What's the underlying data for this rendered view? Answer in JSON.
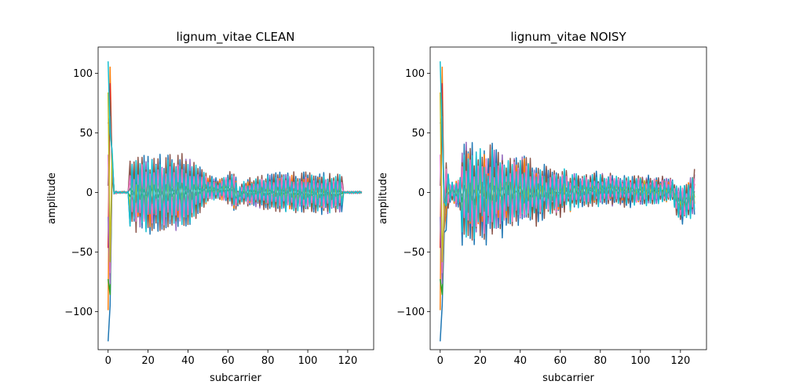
{
  "figure": {
    "left_title": "lignum_vitae CLEAN",
    "right_title": "lignum_vitae NOISY"
  },
  "chart_data": [
    {
      "type": "line",
      "title": "lignum_vitae CLEAN",
      "xlabel": "subcarrier",
      "ylabel": "amplitude",
      "xlim": [
        -5,
        133
      ],
      "ylim": [
        -132,
        122
      ],
      "xticks": [
        0,
        20,
        40,
        60,
        80,
        100,
        120
      ],
      "yticks": [
        -100,
        -50,
        0,
        50,
        100
      ],
      "xtick_labels": [
        "0",
        "20",
        "40",
        "60",
        "80",
        "100",
        "120"
      ],
      "ytick_labels": [
        "−100",
        "−50",
        "0",
        "50",
        "100"
      ],
      "grid": false,
      "series_count": 10,
      "envelope": {
        "x": [
          0,
          1,
          2,
          3,
          5,
          10,
          11,
          15,
          20,
          25,
          30,
          35,
          40,
          45,
          50,
          55,
          60,
          62,
          64,
          65,
          67,
          70,
          75,
          80,
          85,
          90,
          95,
          100,
          105,
          110,
          115,
          117,
          118,
          127
        ],
        "upper": [
          110,
          112,
          45,
          2,
          1,
          1,
          32,
          34,
          34,
          34,
          34,
          35,
          33,
          25,
          15,
          12,
          18,
          19,
          15,
          4,
          10,
          12,
          14,
          16,
          18,
          19,
          18,
          18,
          17,
          17,
          17,
          19,
          1,
          1
        ],
        "lower": [
          -125,
          -95,
          -30,
          -2,
          -1,
          -1,
          -32,
          -35,
          -36,
          -35,
          -35,
          -34,
          -30,
          -22,
          -10,
          -7,
          -12,
          -15,
          -18,
          -12,
          -10,
          -12,
          -14,
          -16,
          -17,
          -18,
          -18,
          -19,
          -19,
          -19,
          -18,
          -19,
          -1,
          -1
        ]
      }
    },
    {
      "type": "line",
      "title": "lignum_vitae NOISY",
      "xlabel": "subcarrier",
      "ylabel": "amplitude",
      "xlim": [
        -5,
        133
      ],
      "ylim": [
        -132,
        122
      ],
      "xticks": [
        0,
        20,
        40,
        60,
        80,
        100,
        120
      ],
      "yticks": [
        -100,
        -50,
        0,
        50,
        100
      ],
      "xtick_labels": [
        "0",
        "20",
        "40",
        "60",
        "80",
        "100",
        "120"
      ],
      "ytick_labels": [
        "−100",
        "−50",
        "0",
        "50",
        "100"
      ],
      "grid": false,
      "series_count": 10,
      "envelope": {
        "x": [
          0,
          1,
          2,
          3,
          5,
          10,
          11,
          15,
          20,
          25,
          30,
          35,
          40,
          45,
          50,
          55,
          60,
          63,
          64,
          65,
          67,
          70,
          75,
          80,
          85,
          90,
          95,
          100,
          105,
          110,
          115,
          117,
          118,
          120,
          122,
          125,
          127
        ],
        "upper": [
          110,
          112,
          55,
          30,
          8,
          15,
          44,
          45,
          42,
          38,
          36,
          34,
          32,
          28,
          25,
          22,
          20,
          18,
          10,
          20,
          18,
          17,
          17,
          16,
          16,
          15,
          15,
          15,
          14,
          14,
          14,
          12,
          8,
          8,
          10,
          15,
          20
        ],
        "lower": [
          -125,
          -95,
          -45,
          -30,
          -8,
          -15,
          -46,
          -45,
          -42,
          -38,
          -35,
          -32,
          -30,
          -28,
          -25,
          -22,
          -20,
          -18,
          -10,
          -18,
          -16,
          -14,
          -13,
          -12,
          -12,
          -12,
          -12,
          -12,
          -11,
          -10,
          -10,
          -12,
          -20,
          -28,
          -26,
          -22,
          -18
        ]
      }
    }
  ]
}
